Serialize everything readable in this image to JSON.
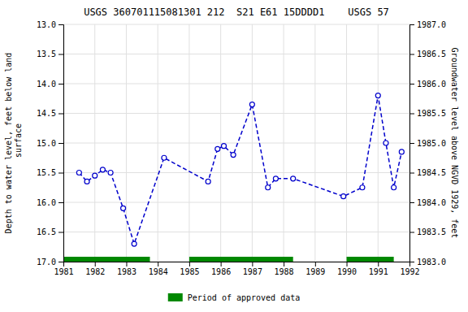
{
  "chart_data": {
    "type": "line",
    "title": "USGS 360701115081301 212  S21 E61 15DDDD1    USGS 57",
    "ylabel": "Depth to water level, feet below land\n surface",
    "y2label": "Groundwater level above NGVD 1929, feet",
    "x": [
      1981.5,
      1981.75,
      1982.0,
      1982.25,
      1982.5,
      1982.9,
      1983.25,
      1984.2,
      1985.6,
      1985.9,
      1986.1,
      1986.4,
      1987.0,
      1987.5,
      1987.75,
      1988.3,
      1989.9,
      1990.5,
      1991.0,
      1991.25,
      1991.5,
      1991.75
    ],
    "series": [
      {
        "color": "#0000CC",
        "marker": "circle",
        "line_style": "dashed",
        "values": [
          15.5,
          15.65,
          15.55,
          15.45,
          15.5,
          16.1,
          16.7,
          15.25,
          15.65,
          15.1,
          15.05,
          15.2,
          14.35,
          15.75,
          15.6,
          15.6,
          15.9,
          15.75,
          14.2,
          15.0,
          15.75,
          15.15
        ]
      },
      {
        "name": "Period of approved data",
        "type": "span",
        "color": "#008800",
        "values": [
          [
            1981.0,
            1983.75
          ],
          [
            1985.0,
            1988.3
          ],
          [
            1990.0,
            1991.5
          ]
        ]
      }
    ],
    "xlim": [
      1981,
      1992
    ],
    "xticks": [
      1981,
      1982,
      1983,
      1984,
      1985,
      1986,
      1987,
      1988,
      1989,
      1990,
      1991,
      1992
    ],
    "ylim": [
      17.0,
      13.0
    ],
    "yticks": [
      {
        "value": 13.0,
        "label": "13.0"
      },
      13.5,
      {
        "value": 14.0,
        "label": "14.0"
      },
      14.5,
      {
        "value": 15.0,
        "label": "15.0"
      },
      15.5,
      {
        "value": 16.0,
        "label": "16.0"
      },
      16.5,
      {
        "value": 17.0,
        "label": "17.0"
      }
    ],
    "y2lim": [
      1983.0,
      1987.0
    ],
    "y2ticks": [
      {
        "value": 1983.0,
        "label": "1983.0"
      },
      1983.5,
      {
        "value": 1984.0,
        "label": "1984.0"
      },
      1984.5,
      {
        "value": 1985.0,
        "label": "1985.0"
      },
      1985.5,
      {
        "value": 1986.0,
        "label": "1986.0"
      },
      1986.5,
      {
        "value": 1987.0,
        "label": "1987.0"
      }
    ],
    "grid": true,
    "legend": "bottom"
  }
}
